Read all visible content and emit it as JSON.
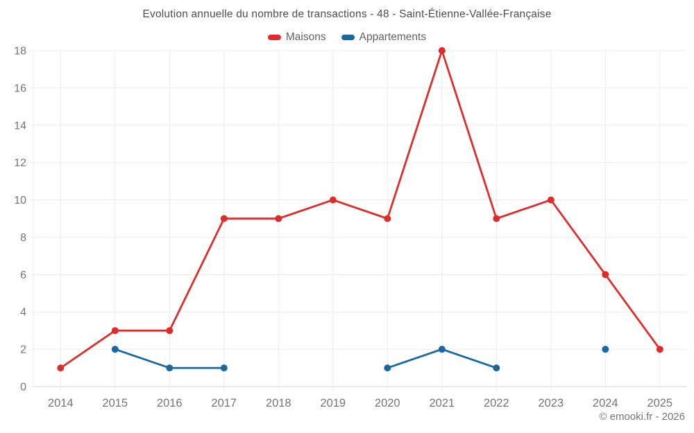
{
  "title": "Evolution annuelle du nombre de transactions - 48 - Saint-Étienne-Vallée-Française",
  "attribution": "© emooki.fr - 2026",
  "colors": {
    "maisons": "#e02b2b",
    "appartements": "#17699f",
    "grid": "#ececec",
    "axis_line": "#d6d6d6",
    "title_text": "#4d4d4d",
    "legend_text": "#616161",
    "axis_text": "#757575",
    "background": "#ffffff"
  },
  "chart_data": {
    "type": "line",
    "title": "Evolution annuelle du nombre de transactions - 48 - Saint-Étienne-Vallée-Française",
    "categories": [
      "2014",
      "2015",
      "2016",
      "2017",
      "2018",
      "2019",
      "2020",
      "2021",
      "2022",
      "2023",
      "2024",
      "2025"
    ],
    "series": [
      {
        "name": "Maisons",
        "color_key": "maisons",
        "values": [
          1,
          3,
          3,
          9,
          9,
          10,
          9,
          18,
          9,
          10,
          6,
          2
        ]
      },
      {
        "name": "Appartements",
        "color_key": "appartements",
        "values": [
          null,
          2,
          1,
          1,
          null,
          null,
          1,
          2,
          1,
          null,
          2,
          null
        ]
      }
    ],
    "xlabel": "",
    "ylabel": "",
    "ylim": [
      0,
      18
    ],
    "ytick_step": 2,
    "grid": true,
    "legend_position": "top"
  }
}
